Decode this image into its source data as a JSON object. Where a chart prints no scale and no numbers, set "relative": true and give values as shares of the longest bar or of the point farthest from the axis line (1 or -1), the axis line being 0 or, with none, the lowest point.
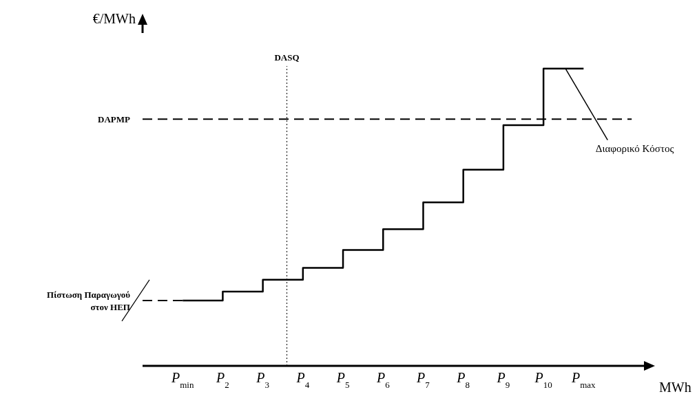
{
  "chart_data": {
    "type": "step",
    "xlabel": "MWh",
    "ylabel": "€/MWh",
    "relative": true,
    "color": "#000000",
    "categories": [
      "P$_{min}$",
      "P$_{2}$",
      "P$_{3}$",
      "P$_{4}$",
      "P$_{5}$",
      "P$_{6}$",
      "P$_{7}$",
      "P$_{8}$",
      "P$_{9}$",
      "P$_{10}$",
      "P$_{max}$"
    ],
    "values": [
      0.22,
      0.25,
      0.29,
      0.33,
      0.39,
      0.46,
      0.55,
      0.66,
      0.81,
      1,
      1
    ],
    "ref_lines": [
      {
        "axis": "y",
        "value": 0.83,
        "label": "DAPMP",
        "line_style": "dashed"
      },
      {
        "axis": "y",
        "value": 0.22,
        "label": "Πίστωση Παραγωγού στον ΗΕΠ",
        "line_style": "dashed"
      }
    ],
    "annotations": [
      "DASQ",
      "Διαφορικό Κόστος"
    ]
  }
}
